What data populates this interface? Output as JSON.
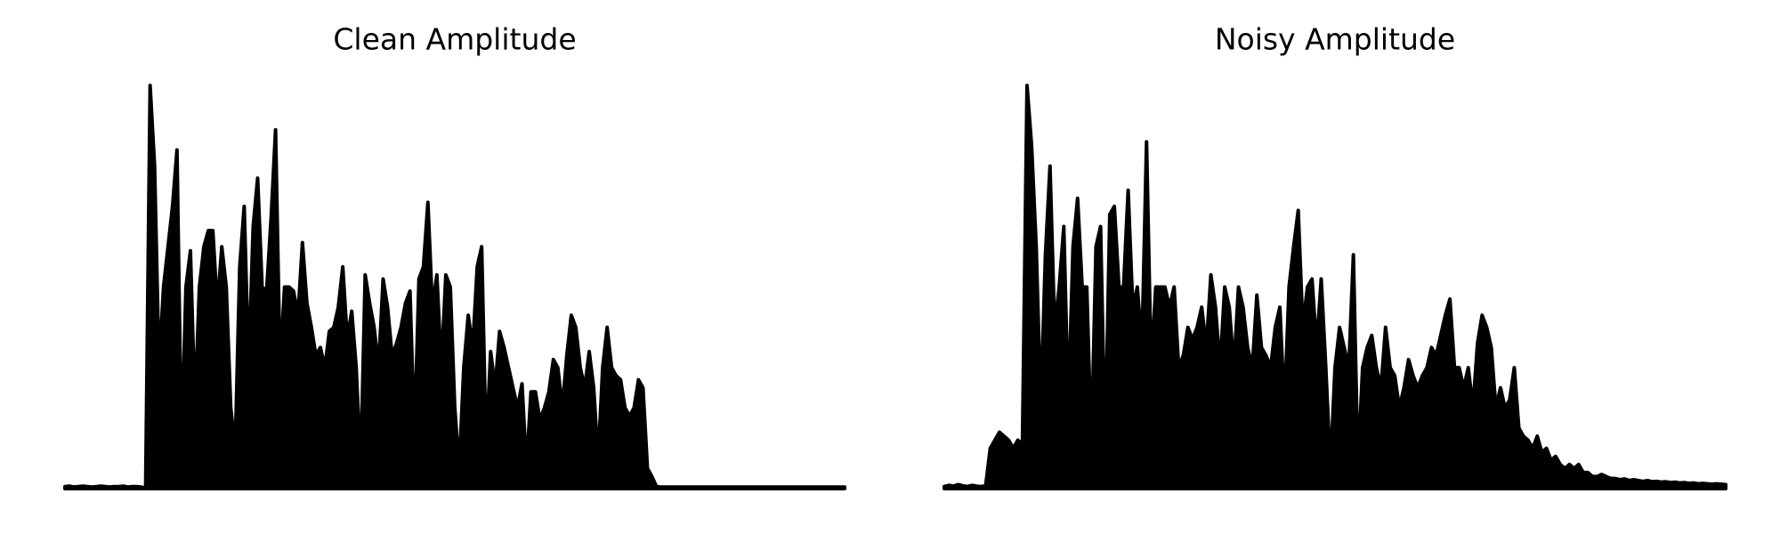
{
  "chart_data": [
    {
      "type": "area",
      "title": "Clean Amplitude",
      "color": "#000000",
      "values": [
        0.005,
        0.006,
        0.004,
        0.005,
        0.006,
        0.005,
        0.004,
        0.005,
        0.006,
        0.005,
        0.004,
        0.005,
        0.005,
        0.006,
        0.004,
        0.005,
        0.005,
        0.004,
        0,
        1.0,
        0.8,
        0.3,
        0.5,
        0.6,
        0.7,
        0.84,
        0.1,
        0.5,
        0.59,
        0.2,
        0.5,
        0.6,
        0.64,
        0.64,
        0.45,
        0.6,
        0.5,
        0.2,
        0.1,
        0.55,
        0.7,
        0.3,
        0.65,
        0.77,
        0.5,
        0.49,
        0.67,
        0.89,
        0.3,
        0.5,
        0.5,
        0.49,
        0.43,
        0.61,
        0.46,
        0.4,
        0.33,
        0.35,
        0.3,
        0.39,
        0.4,
        0.45,
        0.55,
        0.37,
        0.44,
        0.3,
        0.05,
        0.53,
        0.46,
        0.4,
        0.3,
        0.52,
        0.45,
        0.33,
        0.36,
        0.4,
        0.46,
        0.49,
        0.13,
        0.52,
        0.55,
        0.71,
        0.45,
        0.53,
        0.3,
        0.53,
        0.5,
        0.2,
        0.05,
        0.3,
        0.43,
        0.35,
        0.55,
        0.6,
        0.1,
        0.34,
        0.25,
        0.39,
        0.35,
        0.3,
        0.25,
        0.2,
        0.26,
        0.05,
        0.24,
        0.24,
        0.17,
        0.2,
        0.24,
        0.32,
        0.3,
        0.2,
        0.33,
        0.43,
        0.4,
        0.3,
        0.25,
        0.34,
        0.25,
        0.07,
        0.3,
        0.4,
        0.3,
        0.28,
        0.27,
        0.2,
        0.18,
        0.2,
        0.27,
        0.25,
        0.05,
        0.03,
        0.005,
        0.004,
        0.004,
        0.004,
        0.004,
        0.004,
        0.004,
        0.004,
        0.004,
        0.004,
        0.004,
        0.004,
        0.004,
        0.004,
        0.004,
        0.004,
        0.004,
        0.004,
        0.004,
        0.004,
        0.004,
        0.004,
        0.004,
        0.004,
        0.004,
        0.004,
        0.004,
        0.004,
        0.004,
        0.004,
        0.004,
        0.004,
        0.004,
        0.004,
        0.004,
        0.004,
        0.004,
        0.004,
        0.004,
        0.004,
        0.004,
        0.004,
        0.004
      ]
    },
    {
      "type": "area",
      "title": "Noisy Amplitude",
      "color": "#000000",
      "values": [
        0.005,
        0.008,
        0.006,
        0.01,
        0.007,
        0.005,
        0.008,
        0.006,
        0.005,
        0.007,
        0.1,
        0.12,
        0.14,
        0.13,
        0.12,
        0.1,
        0.12,
        0.11,
        1.0,
        0.85,
        0.6,
        0.2,
        0.58,
        0.8,
        0.4,
        0.5,
        0.65,
        0.2,
        0.6,
        0.72,
        0.5,
        0.5,
        0.1,
        0.6,
        0.65,
        0.1,
        0.68,
        0.7,
        0.5,
        0.5,
        0.74,
        0.45,
        0.5,
        0.35,
        0.86,
        0.3,
        0.5,
        0.5,
        0.5,
        0.45,
        0.5,
        0.3,
        0.33,
        0.4,
        0.37,
        0.4,
        0.45,
        0.35,
        0.53,
        0.45,
        0.3,
        0.5,
        0.45,
        0.3,
        0.5,
        0.45,
        0.35,
        0.3,
        0.48,
        0.35,
        0.33,
        0.3,
        0.4,
        0.45,
        0.2,
        0.5,
        0.6,
        0.69,
        0.4,
        0.5,
        0.52,
        0.35,
        0.52,
        0.3,
        0.05,
        0.3,
        0.4,
        0.35,
        0.3,
        0.58,
        0.05,
        0.3,
        0.35,
        0.38,
        0.3,
        0.25,
        0.4,
        0.3,
        0.28,
        0.2,
        0.25,
        0.32,
        0.28,
        0.25,
        0.28,
        0.3,
        0.35,
        0.33,
        0.38,
        0.43,
        0.47,
        0.3,
        0.3,
        0.25,
        0.3,
        0.2,
        0.36,
        0.43,
        0.4,
        0.35,
        0.2,
        0.25,
        0.2,
        0.22,
        0.3,
        0.15,
        0.13,
        0.12,
        0.1,
        0.13,
        0.09,
        0.1,
        0.07,
        0.08,
        0.06,
        0.05,
        0.06,
        0.05,
        0.06,
        0.04,
        0.04,
        0.03,
        0.03,
        0.035,
        0.03,
        0.025,
        0.025,
        0.022,
        0.024,
        0.02,
        0.022,
        0.02,
        0.018,
        0.02,
        0.017,
        0.018,
        0.016,
        0.017,
        0.015,
        0.016,
        0.014,
        0.015,
        0.013,
        0.014,
        0.012,
        0.013,
        0.012,
        0.011,
        0.012,
        0.011,
        0.01
      ]
    }
  ]
}
